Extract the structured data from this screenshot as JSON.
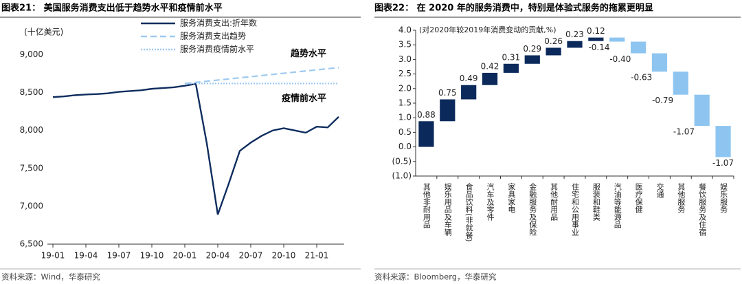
{
  "chart_data": [
    {
      "type": "line",
      "title": "图表21： 美国服务消费支出低于趋势水平和疫情前水平",
      "y_label": "(十亿美元)",
      "source": "资料来源：Wind，华泰研究",
      "categories": [
        "19-01",
        null,
        null,
        "19-04",
        null,
        null,
        "19-07",
        null,
        null,
        "19-10",
        null,
        null,
        "20-01",
        null,
        null,
        "20-04",
        null,
        null,
        "20-07",
        null,
        null,
        "20-10",
        null,
        null,
        "21-01",
        null,
        null
      ],
      "series": [
        {
          "name": "服务消费支出:折年数",
          "color": "#0e2d5e",
          "dash": "solid",
          "values": [
            8440,
            8450,
            8465,
            8475,
            8480,
            8490,
            8510,
            8520,
            8530,
            8550,
            8560,
            8570,
            8590,
            8615,
            7830,
            6890,
            7300,
            7730,
            7840,
            7930,
            8000,
            8030,
            8000,
            7970,
            8050,
            8040,
            8180
          ]
        },
        {
          "name": "服务消费支出趋势",
          "color": "#9ec9f0",
          "dash": "dashed",
          "values": [
            null,
            null,
            null,
            null,
            null,
            null,
            null,
            null,
            null,
            null,
            null,
            null,
            8620,
            8635,
            8650,
            8665,
            8680,
            8695,
            8710,
            8725,
            8740,
            8755,
            8770,
            8785,
            8800,
            8815,
            8830
          ]
        },
        {
          "name": "服务消费疫情前水平",
          "color": "#9ec9f0",
          "dash": "dotted",
          "values": [
            null,
            null,
            null,
            null,
            null,
            null,
            null,
            null,
            null,
            null,
            null,
            null,
            8620,
            8620,
            8620,
            8620,
            8620,
            8620,
            8620,
            8620,
            8620,
            8620,
            8620,
            8620,
            8620,
            8620,
            8620
          ]
        }
      ],
      "annotations": [
        "趋势水平",
        "疫情前水平"
      ],
      "ylim": [
        6500,
        9250
      ],
      "yticks": [
        {
          "value": 6500,
          "label": "6,500"
        },
        {
          "value": 7000,
          "label": "7,000"
        },
        {
          "value": 7500,
          "label": "7,500"
        },
        {
          "value": 8000,
          "label": "8,000"
        },
        {
          "value": 8500,
          "label": "8,500"
        },
        {
          "value": 9000,
          "label": "9,000"
        }
      ]
    },
    {
      "type": "waterfall",
      "title": "图表22： 在 2020 年的服务消费中，特别是体验式服务的拖累更明显",
      "y_label": "(对2020年较2019年消费变动的贡献,%)",
      "source": "资料来源：Bloomberg，华泰研究",
      "categories": [
        "其他非耐用品",
        "娱乐用品及车辆",
        "食品饮料(非就餐)",
        "汽车及零件",
        "家具家电",
        "金融服务及保险",
        "其他耐用品",
        "住宅和公用事业",
        "服装和鞋类",
        "汽油等能源品",
        "医疗保健",
        "交通",
        "其他服务",
        "餐饮服务及住宿",
        "娱乐服务"
      ],
      "values": [
        0.88,
        0.75,
        0.49,
        0.42,
        0.31,
        0.29,
        0.26,
        0.23,
        0.12,
        -0.14,
        -0.4,
        -0.63,
        -0.79,
        -1.07,
        -1.07
      ],
      "value_labels": [
        "0.88",
        "0.75",
        "0.49",
        "0.42",
        "0.31",
        "0.29",
        "0.26",
        "0.23",
        "0.12",
        "-0.14",
        "-0.40",
        "-0.63",
        "-0.79",
        "-1.07",
        "-1.07"
      ],
      "positive_color": "#0b2a5b",
      "negative_color": "#8ec5f0",
      "ylim": [
        -1,
        4
      ],
      "yticks": [
        {
          "value": -1,
          "label": "(1.0)"
        },
        {
          "value": -0.5,
          "label": "(0.5)"
        },
        {
          "value": 0,
          "label": "0.0"
        },
        {
          "value": 0.5,
          "label": "0.5"
        },
        {
          "value": 1,
          "label": "1.0"
        },
        {
          "value": 1.5,
          "label": "1.5"
        },
        {
          "value": 2,
          "label": "2.0"
        },
        {
          "value": 2.5,
          "label": "2.5"
        },
        {
          "value": 3,
          "label": "3.0"
        },
        {
          "value": 3.5,
          "label": "3.5"
        },
        {
          "value": 4,
          "label": "4.0"
        }
      ]
    }
  ]
}
